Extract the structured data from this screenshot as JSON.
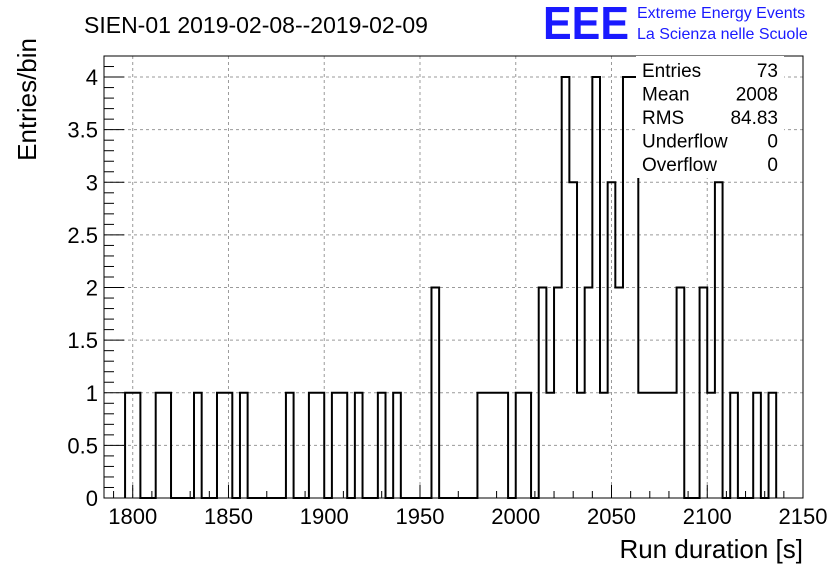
{
  "chart_data": {
    "type": "bar",
    "style": "step-histogram",
    "title": "SIEN-01 2019-02-08--2019-02-09",
    "xlabel": "Run duration [s]",
    "ylabel": "Entries/bin",
    "xlim": [
      1785,
      2150
    ],
    "ylim": [
      0,
      4.2
    ],
    "bin_width": 4,
    "x_ticks": [
      "1800",
      "1850",
      "1900",
      "1950",
      "2000",
      "2050",
      "2100",
      "2150"
    ],
    "y_ticks": [
      "0",
      "0.5",
      "1",
      "1.5",
      "2",
      "2.5",
      "3",
      "3.5",
      "4"
    ],
    "grid": true,
    "bins": [
      {
        "x": 1798,
        "y": 1
      },
      {
        "x": 1802,
        "y": 1
      },
      {
        "x": 1814,
        "y": 1
      },
      {
        "x": 1818,
        "y": 1
      },
      {
        "x": 1834,
        "y": 1
      },
      {
        "x": 1844,
        "y": 1
      },
      {
        "x": 1848,
        "y": 1
      },
      {
        "x": 1858,
        "y": 1
      },
      {
        "x": 1882,
        "y": 1
      },
      {
        "x": 1894,
        "y": 1
      },
      {
        "x": 1898,
        "y": 1
      },
      {
        "x": 1906,
        "y": 1
      },
      {
        "x": 1910,
        "y": 1
      },
      {
        "x": 1918,
        "y": 1
      },
      {
        "x": 1930,
        "y": 1
      },
      {
        "x": 1938,
        "y": 1
      },
      {
        "x": 1958,
        "y": 2
      },
      {
        "x": 1982,
        "y": 1
      },
      {
        "x": 1986,
        "y": 1
      },
      {
        "x": 1990,
        "y": 1
      },
      {
        "x": 1994,
        "y": 1
      },
      {
        "x": 2002,
        "y": 1
      },
      {
        "x": 2006,
        "y": 1
      },
      {
        "x": 2014,
        "y": 2
      },
      {
        "x": 2018,
        "y": 1
      },
      {
        "x": 2022,
        "y": 2
      },
      {
        "x": 2026,
        "y": 4
      },
      {
        "x": 2030,
        "y": 3
      },
      {
        "x": 2034,
        "y": 1
      },
      {
        "x": 2038,
        "y": 2
      },
      {
        "x": 2042,
        "y": 4
      },
      {
        "x": 2046,
        "y": 1
      },
      {
        "x": 2050,
        "y": 3
      },
      {
        "x": 2054,
        "y": 2
      },
      {
        "x": 2058,
        "y": 4
      },
      {
        "x": 2062,
        "y": 4
      },
      {
        "x": 2066,
        "y": 1
      },
      {
        "x": 2070,
        "y": 1
      },
      {
        "x": 2074,
        "y": 1
      },
      {
        "x": 2078,
        "y": 1
      },
      {
        "x": 2082,
        "y": 1
      },
      {
        "x": 2086,
        "y": 2
      },
      {
        "x": 2098,
        "y": 2
      },
      {
        "x": 2102,
        "y": 1
      },
      {
        "x": 2106,
        "y": 3
      },
      {
        "x": 2114,
        "y": 1
      },
      {
        "x": 2126,
        "y": 1
      },
      {
        "x": 2134,
        "y": 1
      }
    ]
  },
  "stats_box": {
    "rows": [
      {
        "label": "Entries",
        "value": "73"
      },
      {
        "label": "Mean",
        "value": "2008"
      },
      {
        "label": "RMS",
        "value": "84.83"
      },
      {
        "label": "Underflow",
        "value": "0"
      },
      {
        "label": "Overflow",
        "value": "0"
      }
    ]
  },
  "logo": {
    "mark": "EEE",
    "line1": "Extreme Energy Events",
    "line2": "La Scienza nelle Scuole",
    "color": "#1a1aff"
  }
}
